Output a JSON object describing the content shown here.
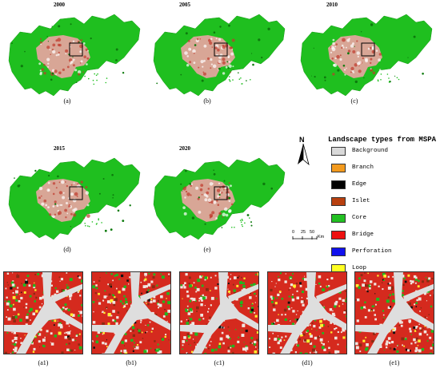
{
  "years": [
    "2000",
    "2005",
    "2010",
    "2015",
    "2020"
  ],
  "panel_labels": [
    "(a)",
    "(b)",
    "(c)",
    "(d)",
    "(e)"
  ],
  "zoom_labels": [
    "(a1)",
    "(b1)",
    "(c1)",
    "(d1)",
    "(e1)"
  ],
  "legend": {
    "title": "Landscape types from MSPA",
    "items": [
      {
        "label": "Background",
        "color": "#d9d9d9"
      },
      {
        "label": "Branch",
        "color": "#f39a1e"
      },
      {
        "label": "Edge",
        "color": "#000000"
      },
      {
        "label": "Islet",
        "color": "#b8400f"
      },
      {
        "label": "Core",
        "color": "#22c022"
      },
      {
        "label": "Bridge",
        "color": "#ee1111"
      },
      {
        "label": "Perforation",
        "color": "#1111ee"
      },
      {
        "label": "Loop",
        "color": "#ffff22"
      }
    ]
  },
  "north_arrow": "N",
  "scale_bar": {
    "ticks": [
      "0",
      "25",
      "50"
    ],
    "unit": "Km"
  },
  "colors": {
    "core": "#22c022",
    "urban": "#d9a08f",
    "background": "#dcdcdc",
    "bridge": "#e8201e"
  }
}
